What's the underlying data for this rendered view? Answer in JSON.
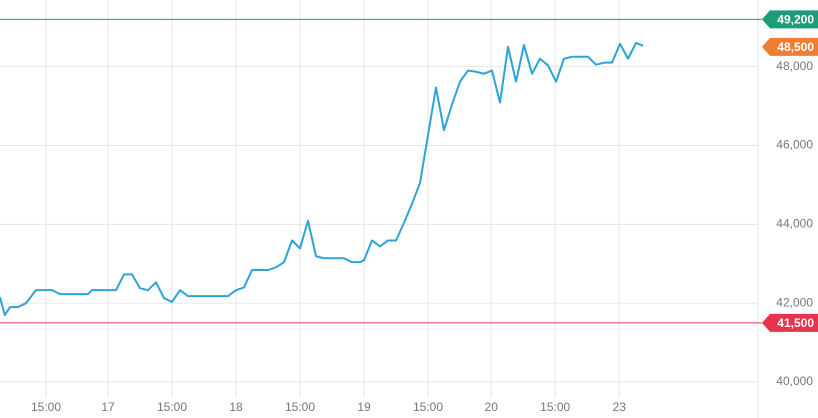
{
  "chart_data": {
    "type": "line",
    "color": "#2ea3d7",
    "grid": true,
    "x": [
      0,
      0.6,
      1.25,
      2.25,
      3.25,
      4.5,
      6.5,
      7.5,
      11,
      11.5,
      14.5,
      15.5,
      16.5,
      17.5,
      18.5,
      19.5,
      20.5,
      21.5,
      22.5,
      23.5,
      28.5,
      29.5,
      30.5,
      31.5,
      33.5,
      34.5,
      35.5,
      36.5,
      37.5,
      38.5,
      39.5,
      40.5,
      43,
      44,
      45,
      45.5,
      46.5,
      47.5,
      48.5,
      49.5,
      50.5,
      51.5,
      52.5,
      53.5,
      54.5,
      55.5,
      56.5,
      57.5,
      58.5,
      59.5,
      60.5,
      61.5,
      62.5,
      63.5,
      64.5,
      65.5,
      66.5,
      67.5,
      68.5,
      69.5,
      70.5,
      71.5,
      73.5,
      74.5,
      75.5,
      76.5,
      77.5,
      78.5,
      79.5,
      80.4
    ],
    "values": [
      42150,
      41700,
      41900,
      41900,
      42000,
      42330,
      42330,
      42230,
      42230,
      42330,
      42330,
      42730,
      42730,
      42380,
      42330,
      42530,
      42130,
      42030,
      42330,
      42180,
      42180,
      42330,
      42400,
      42840,
      42840,
      42910,
      43040,
      43590,
      43390,
      44090,
      43190,
      43140,
      43140,
      43040,
      43040,
      43090,
      43590,
      43440,
      43590,
      43590,
      44040,
      44520,
      45050,
      46260,
      47470,
      46390,
      47040,
      47620,
      47900,
      47870,
      47820,
      47900,
      47090,
      48500,
      47620,
      48550,
      47820,
      48200,
      48030,
      47620,
      48200,
      48250,
      48250,
      48050,
      48100,
      48100,
      48580,
      48200,
      48600,
      48530
    ],
    "xlim": [
      0,
      94.75
    ],
    "xticks": [
      {
        "value": 5.75,
        "label": "15:00"
      },
      {
        "value": 13.5,
        "label": "17"
      },
      {
        "value": 21.5,
        "label": "15:00"
      },
      {
        "value": 29.5,
        "label": "18"
      },
      {
        "value": 37.5,
        "label": "15:00"
      },
      {
        "value": 45.5,
        "label": "19"
      },
      {
        "value": 53.5,
        "label": "15:00"
      },
      {
        "value": 61.4,
        "label": "20"
      },
      {
        "value": 69.4,
        "label": "15:00"
      },
      {
        "value": 77.4,
        "label": "23"
      }
    ],
    "ylim": [
      39620,
      49690
    ],
    "yticks": [
      {
        "value": 40000,
        "label": "40,000"
      },
      {
        "value": 42000,
        "label": "42,000"
      },
      {
        "value": 44000,
        "label": "44,000"
      },
      {
        "value": 46000,
        "label": "46,000"
      },
      {
        "value": 48000,
        "label": "48,000"
      }
    ],
    "price_lines": [
      {
        "value": 49200,
        "label": "49,200",
        "color": "#1e9c7a",
        "line": true
      },
      {
        "value": 48500,
        "label": "48,500",
        "color": "#ef7d34",
        "line": false
      },
      {
        "value": 41500,
        "label": "41,500",
        "color": "#e8334f",
        "line": true
      }
    ]
  }
}
